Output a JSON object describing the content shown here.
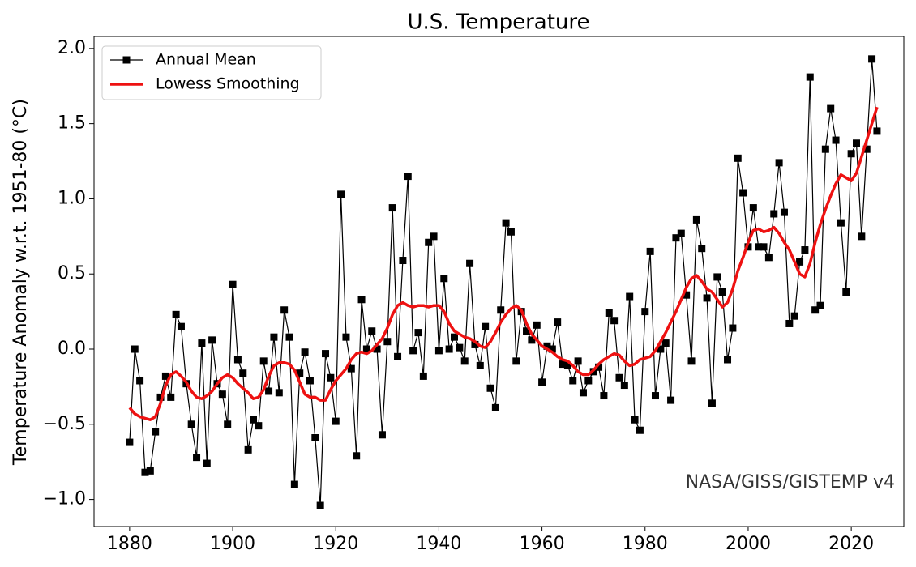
{
  "chart_data": {
    "type": "line",
    "title": "U.S. Temperature",
    "y_label": "Temperature Anomaly w.r.t. 1951-80 (°C)",
    "annotation": "NASA/GISS/GISTEMP v4",
    "x": [
      1880,
      1881,
      1882,
      1883,
      1884,
      1885,
      1886,
      1887,
      1888,
      1889,
      1890,
      1891,
      1892,
      1893,
      1894,
      1895,
      1896,
      1897,
      1898,
      1899,
      1900,
      1901,
      1902,
      1903,
      1904,
      1905,
      1906,
      1907,
      1908,
      1909,
      1910,
      1911,
      1912,
      1913,
      1914,
      1915,
      1916,
      1917,
      1918,
      1919,
      1920,
      1921,
      1922,
      1923,
      1924,
      1925,
      1926,
      1927,
      1928,
      1929,
      1930,
      1931,
      1932,
      1933,
      1934,
      1935,
      1936,
      1937,
      1938,
      1939,
      1940,
      1941,
      1942,
      1943,
      1944,
      1945,
      1946,
      1947,
      1948,
      1949,
      1950,
      1951,
      1952,
      1953,
      1954,
      1955,
      1956,
      1957,
      1958,
      1959,
      1960,
      1961,
      1962,
      1963,
      1964,
      1965,
      1966,
      1967,
      1968,
      1969,
      1970,
      1971,
      1972,
      1973,
      1974,
      1975,
      1976,
      1977,
      1978,
      1979,
      1980,
      1981,
      1982,
      1983,
      1984,
      1985,
      1986,
      1987,
      1988,
      1989,
      1990,
      1991,
      1992,
      1993,
      1994,
      1995,
      1996,
      1997,
      1998,
      1999,
      2000,
      2001,
      2002,
      2003,
      2004,
      2005,
      2006,
      2007,
      2008,
      2009,
      2010,
      2011,
      2012,
      2013,
      2014,
      2015,
      2016,
      2017,
      2018,
      2019,
      2020,
      2021,
      2022,
      2023,
      2024,
      2025
    ],
    "series": [
      {
        "name": "Annual Mean",
        "color": "#000000",
        "values": [
          -0.62,
          0.0,
          -0.21,
          -0.82,
          -0.81,
          -0.55,
          -0.32,
          -0.18,
          -0.32,
          0.23,
          0.15,
          -0.23,
          -0.5,
          -0.72,
          0.04,
          -0.76,
          0.06,
          -0.23,
          -0.3,
          -0.5,
          0.43,
          -0.07,
          -0.16,
          -0.67,
          -0.47,
          -0.51,
          -0.08,
          -0.28,
          0.08,
          -0.29,
          0.26,
          0.08,
          -0.9,
          -0.16,
          -0.02,
          -0.21,
          -0.59,
          -1.04,
          -0.03,
          -0.19,
          -0.48,
          1.03,
          0.08,
          -0.13,
          -0.71,
          0.33,
          0.0,
          0.12,
          0.0,
          -0.57,
          0.05,
          0.94,
          -0.05,
          0.59,
          1.15,
          -0.01,
          0.11,
          -0.18,
          0.71,
          0.75,
          -0.01,
          0.47,
          0.0,
          0.08,
          0.01,
          -0.08,
          0.57,
          0.03,
          -0.11,
          0.15,
          -0.26,
          -0.39,
          0.26,
          0.84,
          0.78,
          -0.08,
          0.25,
          0.12,
          0.06,
          0.16,
          -0.22,
          0.02,
          0.0,
          0.18,
          -0.1,
          -0.11,
          -0.21,
          -0.08,
          -0.29,
          -0.21,
          -0.15,
          -0.12,
          -0.31,
          0.24,
          0.19,
          -0.19,
          -0.24,
          0.35,
          -0.47,
          -0.54,
          0.25,
          0.65,
          -0.31,
          0.0,
          0.04,
          -0.34,
          0.74,
          0.77,
          0.36,
          -0.08,
          0.86,
          0.67,
          0.34,
          -0.36,
          0.48,
          0.38,
          -0.07,
          0.14,
          1.27,
          1.04,
          0.68,
          0.94,
          0.68,
          0.68,
          0.61,
          0.9,
          1.24,
          0.91,
          0.17,
          0.22,
          0.58,
          0.66,
          1.81,
          0.26,
          0.29,
          1.33,
          1.6,
          1.39,
          0.84,
          0.38,
          1.3,
          1.37,
          0.75,
          1.33,
          1.93,
          1.45
        ]
      },
      {
        "name": "Lowess Smoothing",
        "color": "#ee1111",
        "values": [
          -0.39,
          -0.43,
          -0.45,
          -0.46,
          -0.47,
          -0.45,
          -0.36,
          -0.24,
          -0.17,
          -0.15,
          -0.18,
          -0.22,
          -0.28,
          -0.32,
          -0.33,
          -0.31,
          -0.28,
          -0.23,
          -0.19,
          -0.17,
          -0.19,
          -0.23,
          -0.26,
          -0.29,
          -0.33,
          -0.32,
          -0.27,
          -0.18,
          -0.11,
          -0.09,
          -0.09,
          -0.1,
          -0.14,
          -0.22,
          -0.3,
          -0.32,
          -0.32,
          -0.34,
          -0.34,
          -0.27,
          -0.21,
          -0.17,
          -0.13,
          -0.07,
          -0.03,
          -0.02,
          -0.03,
          -0.01,
          0.03,
          0.07,
          0.14,
          0.23,
          0.29,
          0.31,
          0.29,
          0.28,
          0.29,
          0.29,
          0.28,
          0.29,
          0.29,
          0.25,
          0.17,
          0.12,
          0.1,
          0.08,
          0.07,
          0.05,
          0.02,
          0.01,
          0.05,
          0.11,
          0.18,
          0.23,
          0.27,
          0.29,
          0.26,
          0.17,
          0.1,
          0.06,
          0.02,
          0.0,
          -0.02,
          -0.05,
          -0.07,
          -0.08,
          -0.11,
          -0.15,
          -0.17,
          -0.17,
          -0.14,
          -0.1,
          -0.07,
          -0.05,
          -0.03,
          -0.04,
          -0.08,
          -0.11,
          -0.1,
          -0.07,
          -0.06,
          -0.05,
          -0.01,
          0.05,
          0.11,
          0.18,
          0.25,
          0.33,
          0.41,
          0.47,
          0.49,
          0.45,
          0.4,
          0.38,
          0.33,
          0.28,
          0.31,
          0.4,
          0.52,
          0.61,
          0.71,
          0.79,
          0.8,
          0.78,
          0.79,
          0.81,
          0.77,
          0.71,
          0.66,
          0.58,
          0.5,
          0.48,
          0.57,
          0.71,
          0.83,
          0.93,
          1.02,
          1.1,
          1.16,
          1.14,
          1.12,
          1.17,
          1.28,
          1.39,
          1.5,
          1.61
        ]
      }
    ],
    "xlim": [
      1873.1,
      2030.2
    ],
    "ylim": [
      -1.18,
      2.08
    ],
    "xticks": [
      1880,
      1900,
      1920,
      1940,
      1960,
      1980,
      2000,
      2020
    ],
    "yticks": [
      {
        "value": -1.0,
        "label": "−1.0"
      },
      {
        "value": -0.5,
        "label": "−0.5"
      },
      {
        "value": 0.0,
        "label": "0.0"
      },
      0.5,
      {
        "value": 1.0,
        "label": "1.0"
      },
      1.5,
      {
        "value": 2.0,
        "label": "2.0"
      }
    ],
    "legend": "upper left",
    "grid": false
  }
}
